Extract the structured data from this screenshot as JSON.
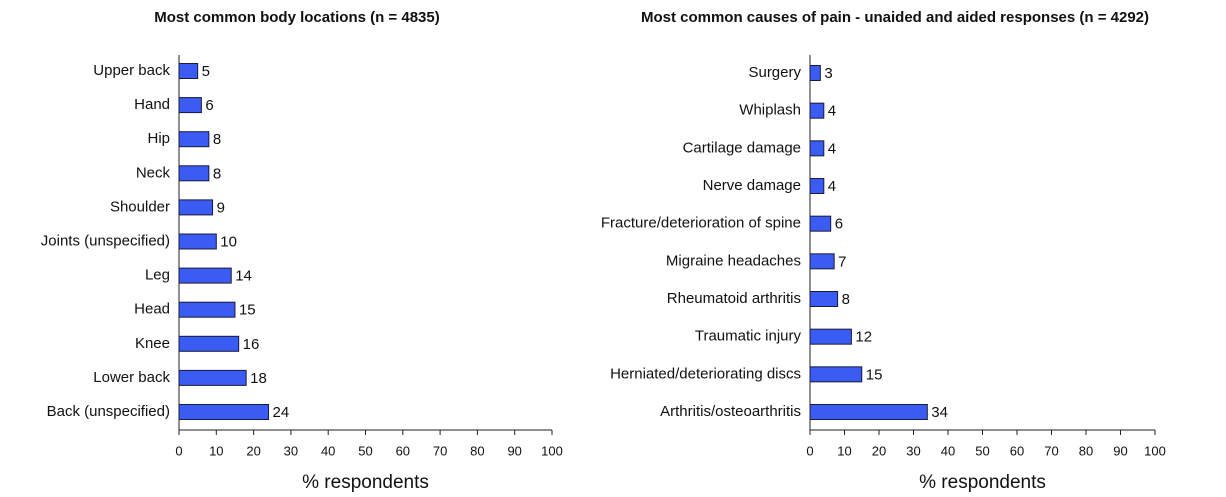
{
  "chart_data": [
    {
      "type": "barh",
      "title": "Most common body locations (n = 4835)",
      "categories": [
        "Upper back",
        "Hand",
        "Hip",
        "Neck",
        "Shoulder",
        "Joints (unspecified)",
        "Leg",
        "Head",
        "Knee",
        "Lower back",
        "Back (unspecified)"
      ],
      "values": [
        5,
        6,
        8,
        8,
        9,
        10,
        14,
        15,
        16,
        18,
        24
      ],
      "color": "#3b5cf2",
      "xlabel": "% respondents",
      "xlim": [
        0,
        100
      ],
      "xticks": [
        0,
        10,
        20,
        30,
        40,
        50,
        60,
        70,
        80,
        90,
        100
      ]
    },
    {
      "type": "barh",
      "title": "Most common causes of pain - unaided and aided responses (n = 4292)",
      "categories": [
        "Surgery",
        "Whiplash",
        "Cartilage damage",
        "Nerve damage",
        "Fracture/deterioration of spine",
        "Migraine headaches",
        "Rheumatoid arthritis",
        "Traumatic injury",
        "Herniated/deteriorating discs",
        "Arthritis/osteoarthritis"
      ],
      "values": [
        3,
        4,
        4,
        4,
        6,
        7,
        8,
        12,
        15,
        34
      ],
      "color": "#3b5cf2",
      "xlabel": "% respondents",
      "xlim": [
        0,
        100
      ],
      "xticks": [
        0,
        10,
        20,
        30,
        40,
        50,
        60,
        70,
        80,
        90,
        100
      ]
    }
  ]
}
